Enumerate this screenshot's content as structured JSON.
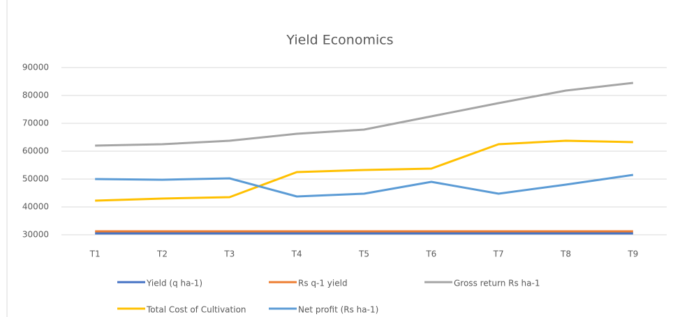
{
  "chart_data": {
    "type": "line",
    "title": "Yield Economics",
    "categories": [
      "T1",
      "T2",
      "T3",
      "T4",
      "T5",
      "T6",
      "T7",
      "T8",
      "T9"
    ],
    "series": [
      {
        "name": "Yield (q ha-1)",
        "color": "#4472c4",
        "values": [
          30500,
          30500,
          30500,
          30500,
          30500,
          30500,
          30500,
          30500,
          30500
        ]
      },
      {
        "name": "Rs q-1 yield",
        "color": "#ed7d31",
        "values": [
          31250,
          31250,
          31250,
          31250,
          31250,
          31250,
          31250,
          31250,
          31250
        ]
      },
      {
        "name": "Gross return Rs ha-1",
        "color": "#a5a5a5",
        "values": [
          62000,
          62500,
          63750,
          66250,
          67750,
          72500,
          77250,
          81750,
          84500
        ]
      },
      {
        "name": "Total Cost of Cultivation",
        "color": "#ffc000",
        "values": [
          42250,
          43000,
          43500,
          52500,
          53250,
          53750,
          62500,
          63750,
          63250
        ]
      },
      {
        "name": "Net profit (Rs ha-1)",
        "color": "#5b9bd5",
        "values": [
          50000,
          49750,
          50250,
          43750,
          44750,
          49000,
          44750,
          48000,
          51500
        ]
      }
    ],
    "ylim": [
      30000,
      90000
    ],
    "yticks": [
      30000,
      40000,
      50000,
      60000,
      70000,
      80000,
      90000
    ],
    "grid": true
  }
}
